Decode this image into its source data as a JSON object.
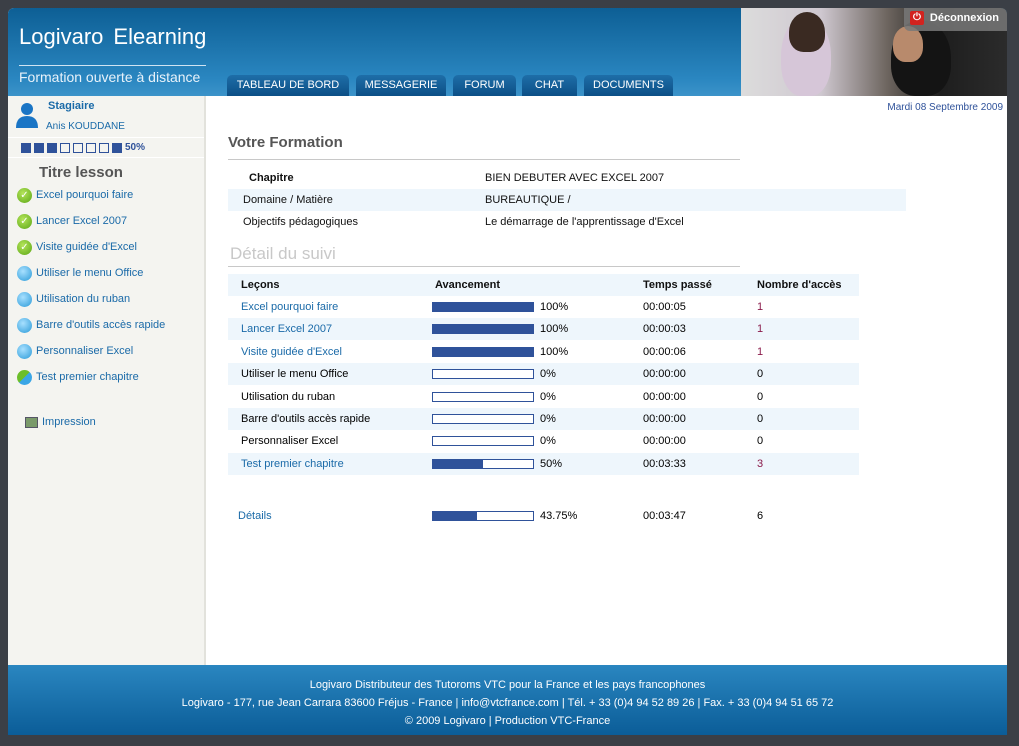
{
  "header": {
    "brand": "Logivaro",
    "product": "Elearning",
    "tagline": "Formation ouverte à distance",
    "logout_label": "Déconnexion",
    "tabs": [
      "TABLEAU DE BORD",
      "MESSAGERIE",
      "FORUM",
      "CHAT",
      "DOCUMENTS"
    ]
  },
  "sidebar": {
    "role": "Stagiaire",
    "user_name": "Anis KOUDDANE",
    "progress_squares": [
      true,
      true,
      true,
      false,
      false,
      false,
      false,
      true
    ],
    "progress_label": "50%",
    "title": "Titre lesson",
    "lessons": [
      {
        "label": "Excel pourquoi faire",
        "status": "done"
      },
      {
        "label": "Lancer Excel 2007",
        "status": "done"
      },
      {
        "label": "Visite guidée d'Excel",
        "status": "done"
      },
      {
        "label": "Utiliser le menu Office",
        "status": "todo"
      },
      {
        "label": "Utilisation du ruban",
        "status": "todo"
      },
      {
        "label": "Barre d'outils accès rapide",
        "status": "todo"
      },
      {
        "label": "Personnaliser Excel",
        "status": "todo"
      },
      {
        "label": "Test premier chapitre",
        "status": "half"
      }
    ],
    "print_label": "Impression"
  },
  "main": {
    "date": "Mardi 08 Septembre 2009",
    "formation_title": "Votre Formation",
    "formation": [
      {
        "key": "Chapitre",
        "value": "BIEN DEBUTER AVEC EXCEL 2007"
      },
      {
        "key": "Domaine / Matière",
        "value": "BUREAUTIQUE /"
      },
      {
        "key": "Objectifs pédagogiques",
        "value": "Le démarrage de l'apprentissage d'Excel"
      }
    ],
    "suivi_title": "Détail du suivi",
    "columns": [
      "Leçons",
      "Avancement",
      "Temps passé",
      "Nombre d'accès"
    ],
    "rows": [
      {
        "lesson": "Excel pourquoi faire",
        "progress": 100,
        "progress_label": "100%",
        "time": "00:00:05",
        "access": "1",
        "link": true
      },
      {
        "lesson": "Lancer Excel 2007",
        "progress": 100,
        "progress_label": "100%",
        "time": "00:00:03",
        "access": "1",
        "link": true
      },
      {
        "lesson": "Visite guidée d'Excel",
        "progress": 100,
        "progress_label": "100%",
        "time": "00:00:06",
        "access": "1",
        "link": true
      },
      {
        "lesson": "Utiliser le menu Office",
        "progress": 0,
        "progress_label": "0%",
        "time": "00:00:00",
        "access": "0",
        "link": false
      },
      {
        "lesson": "Utilisation du ruban",
        "progress": 0,
        "progress_label": "0%",
        "time": "00:00:00",
        "access": "0",
        "link": false
      },
      {
        "lesson": "Barre d'outils accès rapide",
        "progress": 0,
        "progress_label": "0%",
        "time": "00:00:00",
        "access": "0",
        "link": false
      },
      {
        "lesson": "Personnaliser Excel",
        "progress": 0,
        "progress_label": "0%",
        "time": "00:00:00",
        "access": "0",
        "link": false
      },
      {
        "lesson": "Test premier chapitre",
        "progress": 50,
        "progress_label": "50%",
        "time": "00:03:33",
        "access": "3",
        "link": true
      }
    ],
    "total": {
      "lesson": "Détails",
      "progress": 43.75,
      "progress_label": "43.75%",
      "time": "00:03:47",
      "access": "6"
    }
  },
  "footer": {
    "line1": "Logivaro Distributeur des Tutoroms VTC pour la France et les pays francophones",
    "line2": "Logivaro - 177, rue Jean Carrara 83600 Fréjus - France | info@vtcfrance.com | Tél. + 33 (0)4 94 52 89 26 | Fax. + 33 (0)4 94 51 65 72",
    "line3": "© 2009 Logivaro | Production VTC-France"
  },
  "colors": {
    "accent": "#2f529a",
    "link": "#1a6aa8",
    "header": "#1a75b5"
  }
}
